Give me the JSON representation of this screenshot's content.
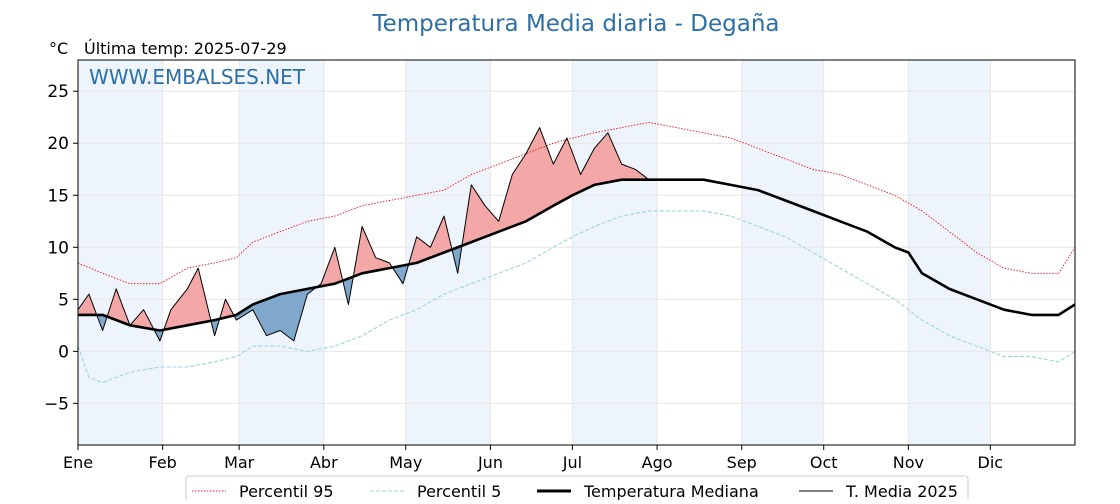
{
  "header": {
    "title": "Temperatura Media diaria - Degaña",
    "unit": "°C",
    "last_temp_text": "Última temp: 2025-07-29",
    "watermark": "WWW.EMBALSES.NET"
  },
  "legend": {
    "items": [
      {
        "label": "Percentil 95",
        "color": "#e8141b",
        "style": "dotted"
      },
      {
        "label": "Percentil 5",
        "color": "#9dd3e3",
        "style": "dashed"
      },
      {
        "label": "Temperatura Mediana",
        "color": "#000000",
        "style": "bold"
      },
      {
        "label": "T. Media 2025",
        "color": "#000000",
        "style": "thin"
      }
    ]
  },
  "colors": {
    "title": "#2e6fa5",
    "watermark": "#2e6fa5",
    "above_fill": "#f4a7a7",
    "above_strong": "#e34848",
    "below_fill": "#7fa8cc",
    "shade": "#eef4fb",
    "grid": "#e6e6e6"
  },
  "chart_data": {
    "type": "line",
    "ylim": [
      -9,
      28
    ],
    "xlim": [
      1,
      366
    ],
    "yticks": [
      -5,
      0,
      5,
      10,
      15,
      20,
      25
    ],
    "month_labels": [
      "Ene",
      "Feb",
      "Mar",
      "Abr",
      "May",
      "Jun",
      "Jul",
      "Ago",
      "Sep",
      "Oct",
      "Nov",
      "Dic"
    ],
    "month_start_days": [
      1,
      32,
      60,
      91,
      121,
      152,
      182,
      213,
      244,
      274,
      305,
      335
    ],
    "shaded_month_ranges": [
      [
        1,
        32
      ],
      [
        60,
        91
      ],
      [
        121,
        152
      ],
      [
        182,
        213
      ],
      [
        244,
        274
      ],
      [
        305,
        335
      ]
    ],
    "grid": true,
    "legend_position": "bottom",
    "series": [
      {
        "name": "Percentil 95",
        "x": [
          1,
          10,
          20,
          31,
          41,
          51,
          59,
          65,
          75,
          85,
          95,
          105,
          115,
          125,
          135,
          145,
          155,
          165,
          175,
          182,
          190,
          200,
          210,
          220,
          230,
          240,
          250,
          260,
          270,
          280,
          290,
          300,
          310,
          320,
          330,
          340,
          350,
          360,
          366
        ],
        "y": [
          8.5,
          7.5,
          6.5,
          6.5,
          8.0,
          8.5,
          9.0,
          10.5,
          11.5,
          12.5,
          13.0,
          14.0,
          14.5,
          15.0,
          15.5,
          17.0,
          18.0,
          19.0,
          20.0,
          20.5,
          21.0,
          21.5,
          22.0,
          21.5,
          21.0,
          20.5,
          19.5,
          18.5,
          17.5,
          17.0,
          16.0,
          15.0,
          13.5,
          11.5,
          9.5,
          8.0,
          7.5,
          7.5,
          10.0
        ]
      },
      {
        "name": "Percentil 5",
        "x": [
          1,
          5,
          10,
          20,
          31,
          41,
          51,
          59,
          65,
          75,
          85,
          95,
          105,
          115,
          125,
          135,
          145,
          155,
          165,
          175,
          182,
          190,
          200,
          210,
          220,
          230,
          240,
          250,
          260,
          270,
          280,
          290,
          300,
          310,
          320,
          330,
          340,
          350,
          360,
          366
        ],
        "y": [
          0.5,
          -2.5,
          -3.0,
          -2.0,
          -1.5,
          -1.5,
          -1.0,
          -0.5,
          0.5,
          0.5,
          0.0,
          0.5,
          1.5,
          3.0,
          4.0,
          5.5,
          6.5,
          7.5,
          8.5,
          10.0,
          11.0,
          12.0,
          13.0,
          13.5,
          13.5,
          13.5,
          13.0,
          12.0,
          11.0,
          9.5,
          8.0,
          6.5,
          5.0,
          3.0,
          1.5,
          0.5,
          -0.5,
          -0.5,
          -1.0,
          0.0
        ]
      },
      {
        "name": "Temperatura Mediana",
        "x": [
          1,
          10,
          20,
          31,
          41,
          51,
          59,
          65,
          75,
          85,
          95,
          105,
          115,
          125,
          135,
          145,
          155,
          165,
          175,
          182,
          190,
          200,
          210,
          220,
          230,
          240,
          250,
          260,
          270,
          280,
          290,
          300,
          305,
          310,
          320,
          330,
          340,
          350,
          360,
          366
        ],
        "y": [
          3.5,
          3.5,
          2.5,
          2.0,
          2.5,
          3.0,
          3.5,
          4.5,
          5.5,
          6.0,
          6.5,
          7.5,
          8.0,
          8.5,
          9.5,
          10.5,
          11.5,
          12.5,
          14.0,
          15.0,
          16.0,
          16.5,
          16.5,
          16.5,
          16.5,
          16.0,
          15.5,
          14.5,
          13.5,
          12.5,
          11.5,
          10.0,
          9.5,
          7.5,
          6.0,
          5.0,
          4.0,
          3.5,
          3.5,
          4.5
        ]
      },
      {
        "name": "T. Media 2025",
        "x": [
          1,
          5,
          10,
          15,
          20,
          25,
          31,
          35,
          41,
          45,
          51,
          55,
          59,
          65,
          70,
          75,
          80,
          85,
          90,
          95,
          100,
          105,
          110,
          115,
          120,
          125,
          130,
          135,
          140,
          145,
          150,
          155,
          160,
          165,
          170,
          175,
          180,
          185,
          190,
          195,
          200,
          205,
          210
        ],
        "y": [
          4.0,
          5.5,
          2.0,
          6.0,
          2.5,
          4.0,
          1.0,
          4.0,
          6.0,
          8.0,
          1.5,
          5.0,
          3.0,
          4.0,
          1.5,
          2.0,
          1.0,
          5.5,
          6.5,
          10.0,
          4.5,
          12.0,
          9.0,
          8.5,
          6.5,
          11.0,
          10.0,
          13.0,
          7.5,
          16.0,
          14.0,
          12.5,
          17.0,
          19.0,
          21.5,
          18.0,
          20.5,
          17.0,
          19.5,
          21.0,
          18.0,
          17.5,
          16.5
        ]
      }
    ]
  }
}
